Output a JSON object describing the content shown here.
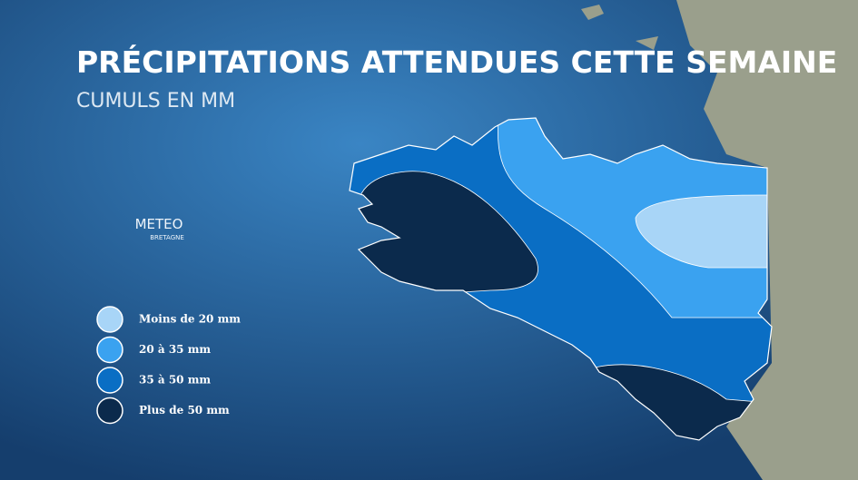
{
  "header": {
    "title": "PRÉCIPITATIONS ATTENDUES CETTE SEMAINE",
    "subtitle": "CUMULS EN MM"
  },
  "logo": {
    "text": "METEO",
    "subtext": "BRETAGNE"
  },
  "legend": [
    {
      "label": "Moins de 20 mm",
      "color": "#a8d5f7"
    },
    {
      "label": "20 à 35 mm",
      "color": "#3aa2f0"
    },
    {
      "label": "35 à 50 mm",
      "color": "#0a6ec4"
    },
    {
      "label": "Plus de 50 mm",
      "color": "#0b2a4c"
    }
  ]
}
